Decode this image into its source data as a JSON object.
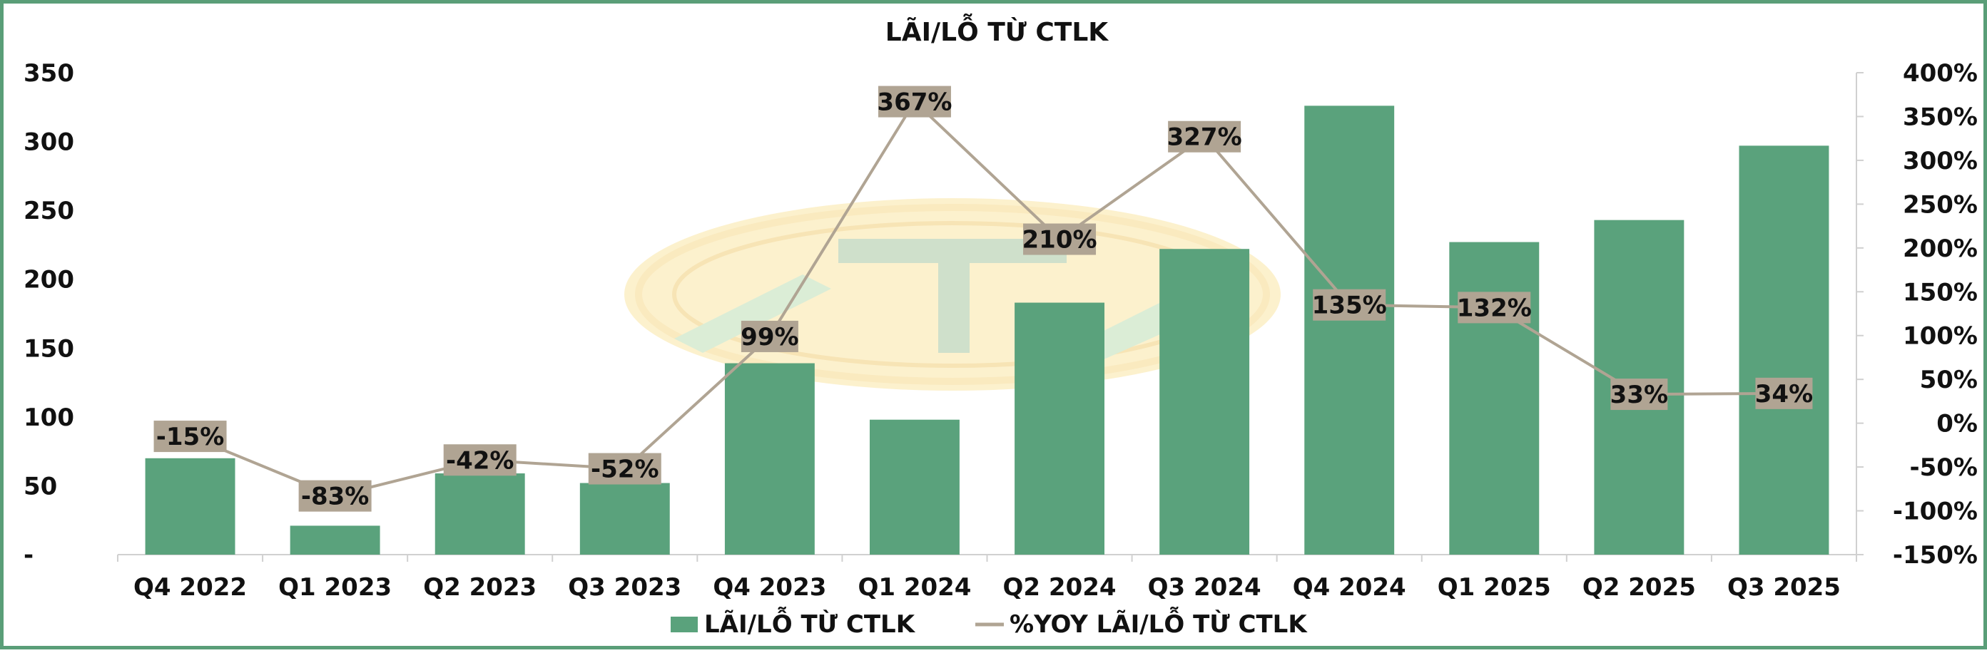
{
  "chart_data": {
    "type": "bar",
    "title": "LÃI/LỖ TỪ CTLK",
    "categories": [
      "Q4 2022",
      "Q1 2023",
      "Q2 2023",
      "Q3 2023",
      "Q4 2023",
      "Q1 2024",
      "Q2 2024",
      "Q3 2024",
      "Q4 2024",
      "Q1 2025",
      "Q2 2025",
      "Q3 2025"
    ],
    "series": [
      {
        "name": "LÃI/LỖ TỪ CTLK",
        "type": "bar",
        "axis": "left",
        "color": "#5aa27c",
        "values": [
          70,
          21,
          59,
          52,
          139,
          98,
          183,
          222,
          326,
          227,
          243,
          297
        ]
      },
      {
        "name": "%YOY LÃI/LỖ TỪ CTLK",
        "type": "line",
        "axis": "right",
        "color": "#b0a493",
        "values": [
          -15,
          -83,
          -42,
          -52,
          99,
          367,
          210,
          327,
          135,
          132,
          33,
          34
        ],
        "labels": [
          "-15%",
          "-83%",
          "-42%",
          "-52%",
          "99%",
          "367%",
          "210%",
          "327%",
          "135%",
          "132%",
          "33%",
          "34%"
        ]
      }
    ],
    "ylim": [
      0,
      350
    ],
    "y_ticks": [
      0,
      50,
      100,
      150,
      200,
      250,
      300,
      350
    ],
    "y_tick_labels": [
      "-",
      "50",
      "100",
      "150",
      "200",
      "250",
      "300",
      "350"
    ],
    "y2lim": [
      -150,
      400
    ],
    "y2_ticks": [
      -150,
      -100,
      -50,
      0,
      50,
      100,
      150,
      200,
      250,
      300,
      350,
      400
    ],
    "y2_tick_labels": [
      "-150%",
      "-100%",
      "-50%",
      "0%",
      "50%",
      "100%",
      "150%",
      "200%",
      "250%",
      "300%",
      "350%",
      "400%"
    ],
    "grid": false,
    "legend_position": "bottom",
    "label_box_color": "#b0a493",
    "frame_color": "#5a9e78"
  }
}
